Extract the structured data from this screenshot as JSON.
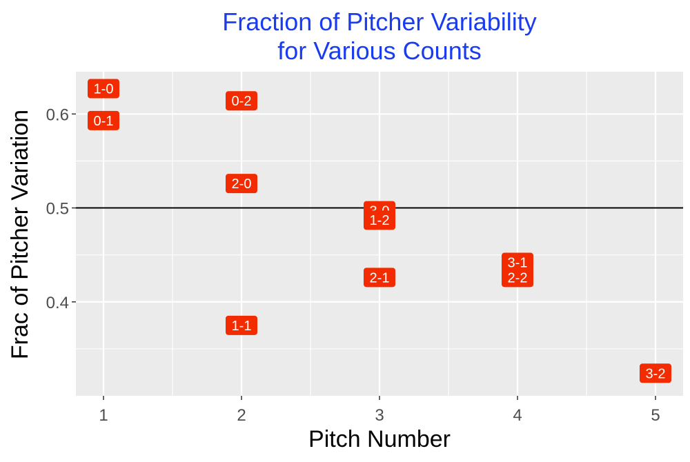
{
  "chart_data": {
    "type": "scatter",
    "title": [
      "Fraction of Pitcher Variability",
      "for Various Counts"
    ],
    "xlabel": "Pitch Number",
    "ylabel": "Frac of Pitcher Variation",
    "xlim": [
      0.8,
      5.2
    ],
    "ylim": [
      0.3,
      0.645
    ],
    "x_ticks": [
      1,
      2,
      3,
      4,
      5
    ],
    "y_ticks": [
      0.4,
      0.5,
      0.6
    ],
    "y_minor_ticks": [
      0.35,
      0.45,
      0.55
    ],
    "reference_line_y": 0.5,
    "grid": true,
    "points": [
      {
        "x": 1,
        "y": 0.627,
        "label": "1-0"
      },
      {
        "x": 1,
        "y": 0.593,
        "label": "0-1"
      },
      {
        "x": 2,
        "y": 0.614,
        "label": "0-2"
      },
      {
        "x": 2,
        "y": 0.526,
        "label": "2-0"
      },
      {
        "x": 2,
        "y": 0.375,
        "label": "1-1"
      },
      {
        "x": 3,
        "y": 0.497,
        "label": "3-0"
      },
      {
        "x": 3,
        "y": 0.487,
        "label": "1-2"
      },
      {
        "x": 3,
        "y": 0.426,
        "label": "2-1"
      },
      {
        "x": 4,
        "y": 0.442,
        "label": "3-1"
      },
      {
        "x": 4,
        "y": 0.426,
        "label": "2-2"
      },
      {
        "x": 5,
        "y": 0.324,
        "label": "3-2"
      }
    ]
  },
  "colors": {
    "title": "#1a3cf0",
    "panel_bg": "#ebebeb",
    "grid": "#ffffff",
    "label_fill": "#f22c00",
    "label_text": "#ffffff",
    "reference_line": "#000000",
    "tick_text": "#4d4d4d"
  }
}
